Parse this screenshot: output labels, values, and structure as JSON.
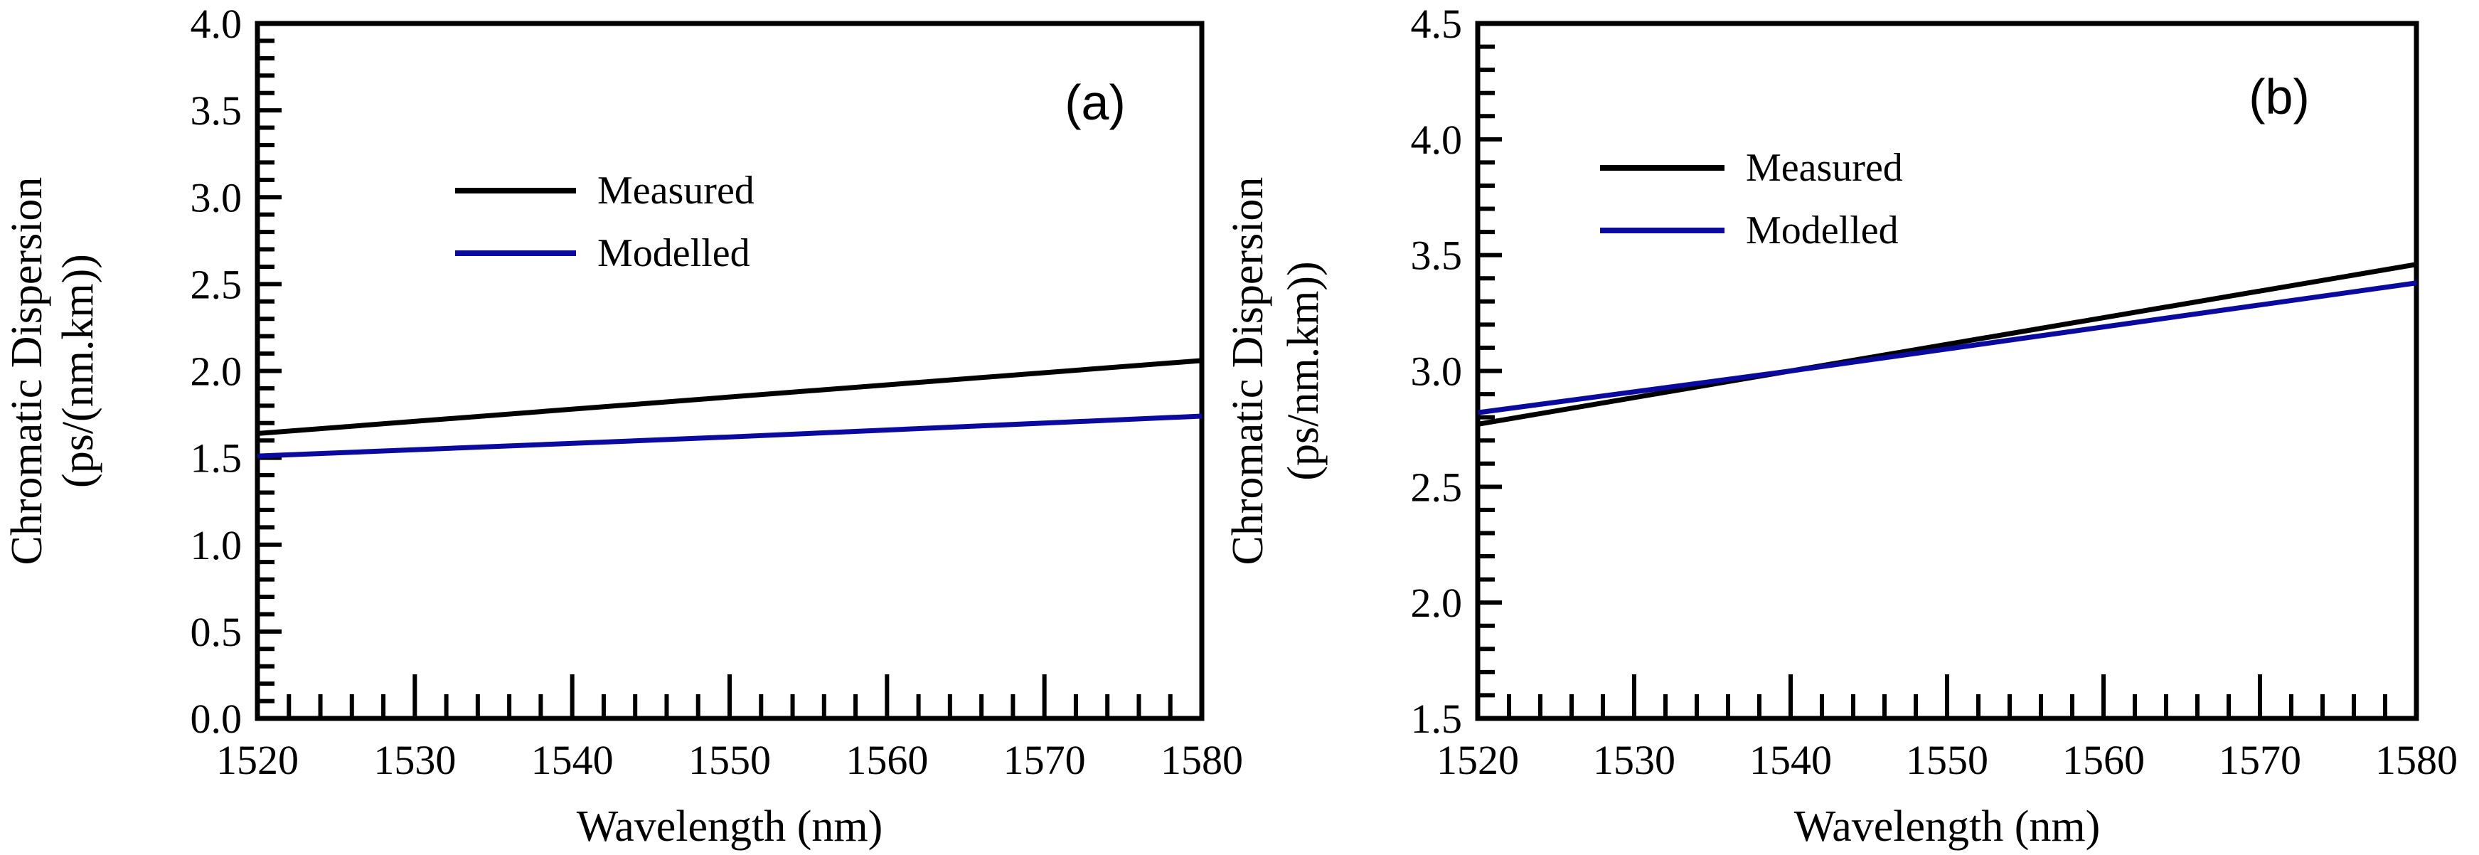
{
  "chart_data": [
    {
      "type": "line",
      "panel_label": "(a)",
      "xlabel": "Wavelength (nm)",
      "ylabel_line1": "Chromatic Dispersion",
      "ylabel_line2": "(ps/(nm.km))",
      "xlim": [
        1520,
        1580
      ],
      "ylim": [
        0.0,
        4.0
      ],
      "xticks": [
        1520,
        1530,
        1540,
        1550,
        1560,
        1570,
        1580
      ],
      "xtick_labels": [
        "1520",
        "1530",
        "1540",
        "1550",
        "1560",
        "1570",
        "1580"
      ],
      "yticks": [
        0.0,
        0.5,
        1.0,
        1.5,
        2.0,
        2.5,
        3.0,
        3.5,
        4.0
      ],
      "ytick_labels": [
        "0.0",
        "0.5",
        "1.0",
        "1.5",
        "2.0",
        "2.5",
        "3.0",
        "3.5",
        "4.0"
      ],
      "legend_position": "upper-center",
      "series": [
        {
          "name": "Measured",
          "color": "#000000",
          "x": [
            1520,
            1580
          ],
          "y": [
            1.64,
            2.06
          ]
        },
        {
          "name": "Modelled",
          "color": "#0a0aa0",
          "x": [
            1520,
            1550,
            1580
          ],
          "y": [
            1.51,
            1.62,
            1.74
          ]
        }
      ]
    },
    {
      "type": "line",
      "panel_label": "(b)",
      "xlabel": "Wavelength (nm)",
      "ylabel_line1": "Chromatic Dispersion",
      "ylabel_line2": "(ps/nm.km))",
      "xlim": [
        1520,
        1580
      ],
      "ylim": [
        1.5,
        4.5
      ],
      "xticks": [
        1520,
        1530,
        1540,
        1550,
        1560,
        1570,
        1580
      ],
      "xtick_labels": [
        "1520",
        "1530",
        "1540",
        "1550",
        "1560",
        "1570",
        "1580"
      ],
      "yticks": [
        1.5,
        2.0,
        2.5,
        3.0,
        3.5,
        4.0,
        4.5
      ],
      "ytick_labels": [
        "1.5",
        "2.0",
        "2.5",
        "3.0",
        "3.5",
        "4.0",
        "4.5"
      ],
      "legend_position": "upper-left",
      "series": [
        {
          "name": "Measured",
          "color": "#000000",
          "x": [
            1520,
            1580
          ],
          "y": [
            2.77,
            3.46
          ]
        },
        {
          "name": "Modelled",
          "color": "#0a0aa0",
          "x": [
            1520,
            1540,
            1560,
            1580
          ],
          "y": [
            2.82,
            3.0,
            3.19,
            3.38
          ]
        }
      ]
    }
  ]
}
